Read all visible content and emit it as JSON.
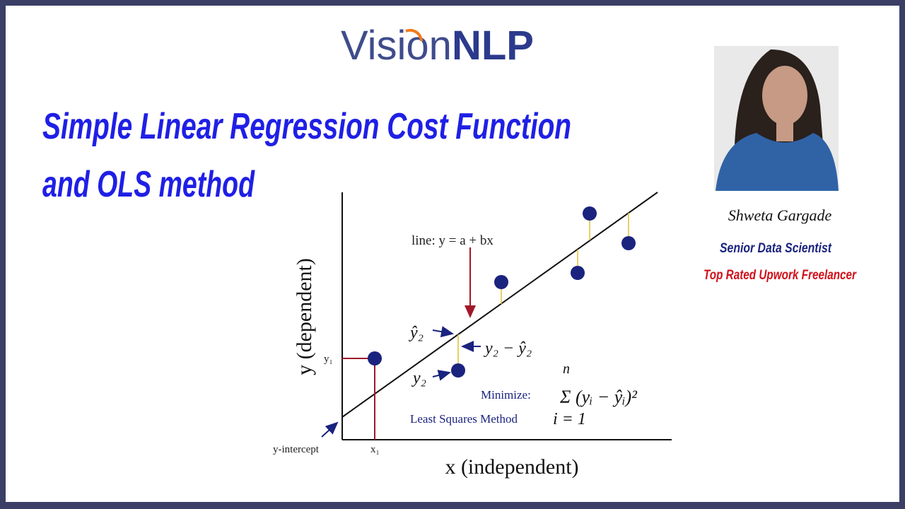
{
  "logo": {
    "part1": "Visi",
    "part2": "on",
    "part3": "NLP"
  },
  "title": {
    "line1": "Simple Linear Regression Cost Function",
    "line2": "and OLS method"
  },
  "presenter": {
    "name": "Shweta Gargade",
    "role": "Senior Data Scientist",
    "badge": "Top Rated Upwork Freelancer"
  },
  "diagram": {
    "y_axis_label": "y (dependent)",
    "x_axis_label": "x (independent)",
    "line_label": "line:  y = a + bx",
    "y_intercept": "y-intercept",
    "x1": "x₁",
    "y1": "y₁",
    "y_hat_2": "ŷ₂",
    "residual": "y₂ − ŷ₂",
    "y2": "y₂",
    "minimize": "Minimize:",
    "method": "Least Squares Method",
    "sum_top": "n",
    "sum_expr": "Σ (yᵢ − ŷᵢ)²",
    "sum_bottom": "i = 1"
  }
}
